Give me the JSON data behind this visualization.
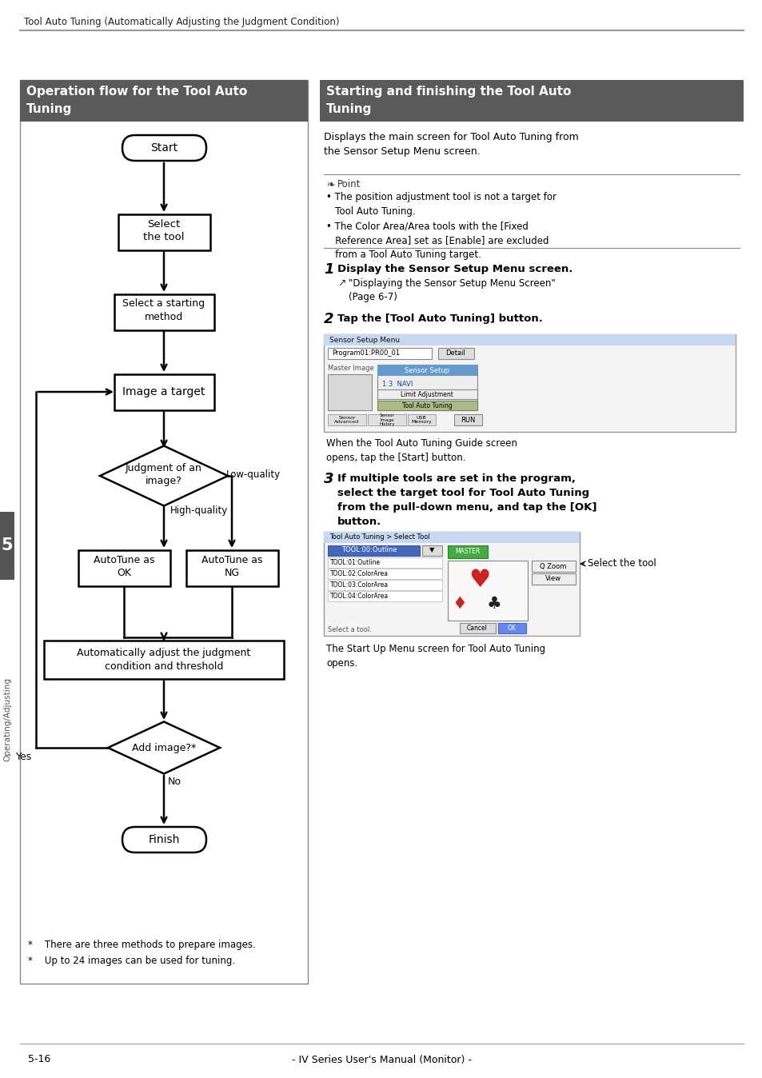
{
  "page_title": "Tool Auto Tuning (Automatically Adjusting the Judgment Condition)",
  "left_panel_title": "Operation flow for the Tool Auto\nTuning",
  "right_panel_title": "Starting and finishing the Tool Auto\nTuning",
  "header_bg": "#5a5a5a",
  "header_text_color": "#ffffff",
  "background_color": "#ffffff",
  "footnotes": [
    "*    There are three methods to prepare images.",
    "*    Up to 24 images can be used for tuning."
  ],
  "right_text_intro": "Displays the main screen for Tool Auto Tuning from\nthe Sensor Setup Menu screen.",
  "point_text": "• The position adjustment tool is not a target for\n   Tool Auto Tuning.\n• The Color Area/Area tools with the [Fixed\n   Reference Area] set as [Enable] are excluded\n   from a Tool Auto Tuning target.",
  "step1_bold": "Display the Sensor Setup Menu screen.",
  "step1_ref": "\"Displaying the Sensor Setup Menu Screen\"\n(Page 6-7)",
  "step2_bold": "Tap the [Tool Auto Tuning] button.",
  "step2_sub": "When the Tool Auto Tuning Guide screen\nopens, tap the [Start] button.",
  "step3_bold": "If multiple tools are set in the program,\nselect the target tool for Tool Auto Tuning\nfrom the pull-down menu, and tap the [OK]\nbutton.",
  "step3_sub": "The Start Up Menu screen for Tool Auto Tuning\nopens.",
  "select_tool_label": "Select the tool",
  "sidebar_number": "5",
  "sidebar_text": "Operating/Adjusting",
  "page_number": "5-16",
  "footer_center": "- IV Series User's Manual (Monitor) -"
}
